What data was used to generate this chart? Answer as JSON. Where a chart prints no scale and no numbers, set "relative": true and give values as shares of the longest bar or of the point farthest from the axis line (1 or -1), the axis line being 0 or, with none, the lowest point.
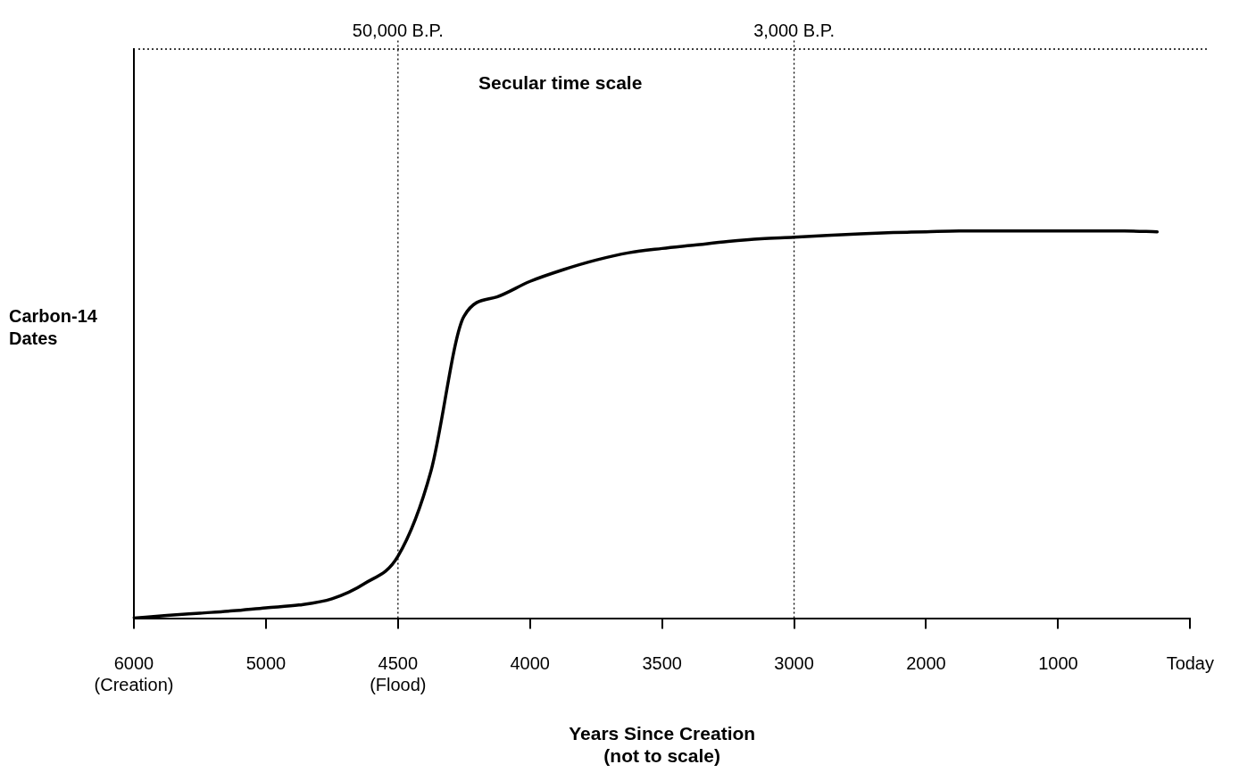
{
  "chart_data": {
    "type": "line",
    "relative": true,
    "categories": [
      "6000\n(Creation)",
      null,
      null,
      null,
      "5000",
      null,
      null,
      null,
      "4500\n(Flood)",
      null,
      null,
      null,
      "4000",
      null,
      null,
      null,
      "3500",
      null,
      null,
      null,
      "3000",
      null,
      null,
      null,
      "2000",
      null,
      null,
      null,
      "1000",
      null,
      null,
      null,
      "Today"
    ],
    "series": [
      {
        "color": "#000000",
        "values": [
          0,
          0.007,
          0.013,
          0.019,
          0.027,
          0.034,
          0.05,
          0.09,
          0.16,
          0.38,
          0.78,
          0.83,
          0.87,
          0.9,
          0.925,
          0.944,
          0.955,
          0.964,
          0.973,
          0.98,
          0.984,
          0.989,
          0.993,
          0.996,
          0.998,
          1,
          1,
          1,
          1,
          1,
          1,
          0.998,
          null
        ]
      }
    ],
    "xlabel": "Years Since Creation\n(not to scale)",
    "ylabel": "Carbon-14\nDates",
    "ref_lines": [
      {
        "axis": "x",
        "value": "4500\n(Flood)",
        "label": "50,000 B.P.",
        "line_style": "dotted"
      },
      {
        "axis": "x",
        "value": "3000",
        "label": "3,000 B.P.",
        "line_style": "dotted"
      },
      {
        "axis": "y",
        "value": 1.47,
        "label": "Secular time scale",
        "line_style": "dotted"
      }
    ],
    "grid": false,
    "legend": false,
    "marker": "none",
    "line_style": "solid"
  }
}
